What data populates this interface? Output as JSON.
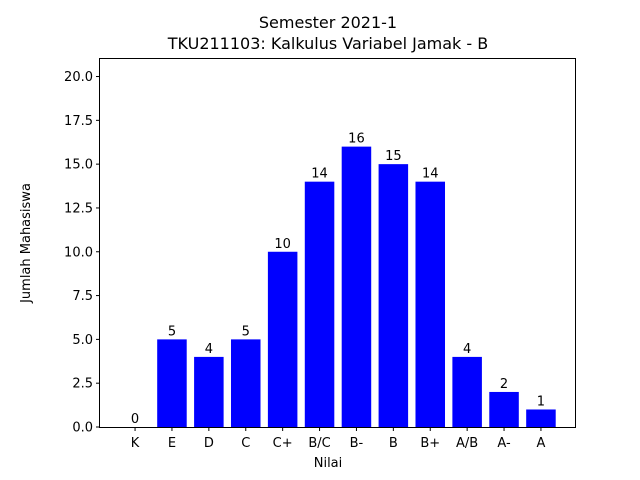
{
  "chart_data": {
    "type": "bar",
    "title_lines": [
      "Semester 2021-1",
      "TKU211103: Kalkulus Variabel Jamak - B"
    ],
    "xlabel": "Nilai",
    "ylabel": "Jumlah Mahasiswa",
    "categories": [
      "K",
      "E",
      "D",
      "C",
      "C+",
      "B/C",
      "B-",
      "B",
      "B+",
      "A/B",
      "A-",
      "A"
    ],
    "values": [
      0,
      5,
      4,
      5,
      10,
      14,
      16,
      15,
      14,
      4,
      2,
      1
    ],
    "data_labels": [
      "0",
      "5",
      "4",
      "5",
      "10",
      "14",
      "16",
      "15",
      "14",
      "4",
      "2",
      "1"
    ],
    "ylim": [
      0,
      21
    ],
    "yticks": [
      0,
      2.5,
      5,
      7.5,
      10,
      12.5,
      15,
      17.5,
      20
    ],
    "ytick_labels": [
      "0.0",
      "2.5",
      "5.0",
      "7.5",
      "10.0",
      "12.5",
      "15.0",
      "17.5",
      "20.0"
    ],
    "bar_color": "#0000ff",
    "grid": false,
    "legend": "none"
  }
}
